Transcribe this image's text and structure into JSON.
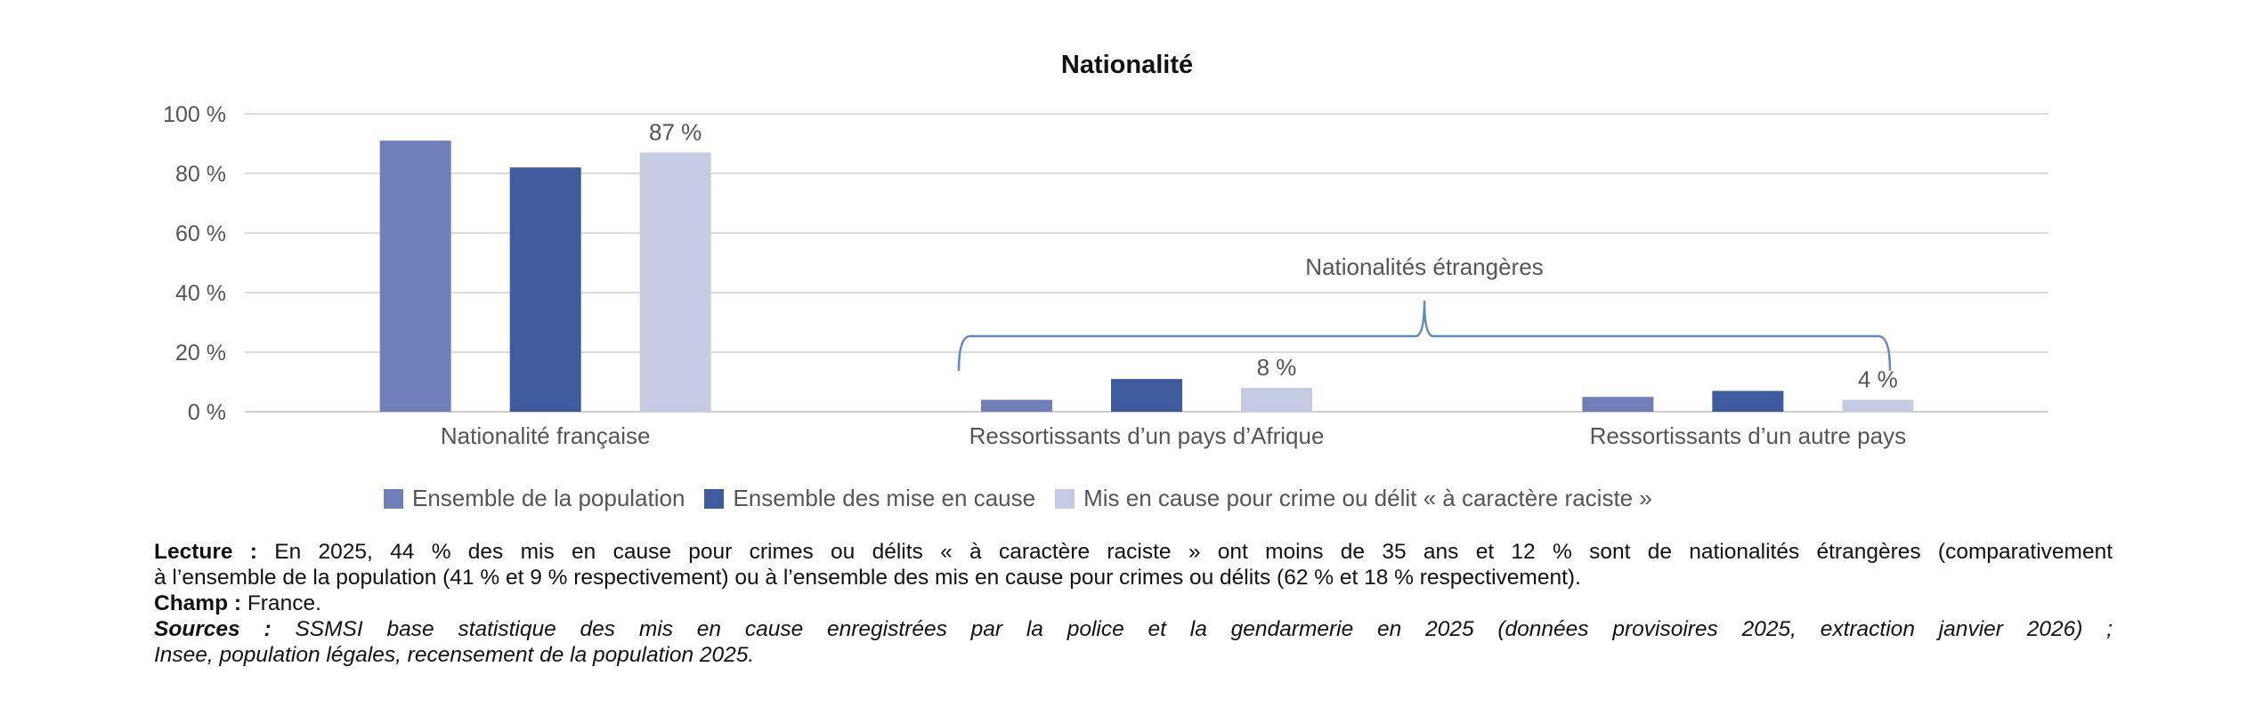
{
  "chart_data": {
    "type": "bar",
    "title": "Nationalité",
    "categories": [
      "Nationalité française",
      "Ressortissants d’un pays d’Afrique",
      "Ressortissants d’un autre pays"
    ],
    "series": [
      {
        "name": "Ensemble de la population",
        "values": [
          91,
          4,
          5
        ],
        "color": "#6f7fb7",
        "labels": [
          null,
          null,
          null
        ]
      },
      {
        "name": "Ensemble des mise en cause",
        "values": [
          82,
          11,
          7
        ],
        "color": "#3d5b9d",
        "labels": [
          null,
          null,
          null
        ]
      },
      {
        "name": "Mis en cause pour crime ou délit « à caractère raciste »",
        "values": [
          87,
          8,
          4
        ],
        "color": "#c6cbe4",
        "labels": [
          "87 %",
          "8 %",
          "4 %"
        ]
      }
    ],
    "yticks": [
      "0 %",
      "20 %",
      "40 %",
      "60 %",
      "80 %",
      "100 %"
    ],
    "ylim": [
      0,
      100
    ],
    "grid": true,
    "legend_position": "bottom",
    "annotation": "Nationalités étrangères",
    "xlabel": "",
    "ylabel": ""
  },
  "notes": {
    "lecture_label": "Lecture :",
    "lecture_line1": "En 2025, 44 % des mis en cause pour crimes ou délits « à caractère raciste » ont moins de 35 ans et 12 % sont de nationalités étrangères (comparativement",
    "lecture_line2": "à l’ensemble de la population (41 % et 9 % respectivement) ou à l’ensemble des mis en cause pour crimes ou délits (62 % et 18 % respectivement).",
    "champ_label": "Champ :",
    "champ_text": "France.",
    "sources_label": "Sources :",
    "sources_line1": "SSMSI base statistique des mis en cause enregistrées par la police et la gendarmerie en 2025 (données provisoires 2025, extraction janvier 2026) ;",
    "sources_line2": "Insee, population légales, recensement de la population 2025."
  }
}
